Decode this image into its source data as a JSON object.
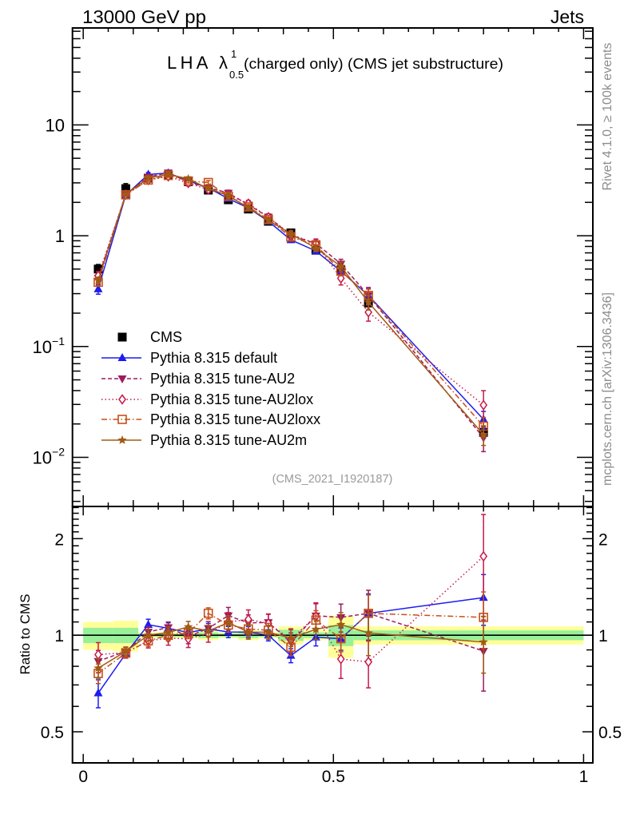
{
  "header": {
    "left": "13000 GeV pp",
    "right": "Jets"
  },
  "side_labels": {
    "rivet": "Rivet 4.1.0, ≥ 100k events",
    "mcplots": "mcplots.cern.ch [arXiv:1306.3436]"
  },
  "chart_data": {
    "type": "line",
    "title": {
      "prefix": "LHA λ",
      "sup": "1",
      "sub": "0.5",
      "suffix": "(charged only) (CMS jet substructure)"
    },
    "analysis_label": "(CMS_2021_I1920187)",
    "xlabel": "",
    "xlim": [
      -0.0215,
      1.0185
    ],
    "x_ticks": [
      {
        "value": 0,
        "label": "0"
      },
      {
        "value": 0.5,
        "label": "0.5"
      },
      {
        "value": 1,
        "label": "1"
      }
    ],
    "x_minor_step": 0.05,
    "bin_edges": [
      0,
      0.06,
      0.11,
      0.15,
      0.19,
      0.23,
      0.27,
      0.31,
      0.35,
      0.39,
      0.44,
      0.49,
      0.54,
      0.6,
      1.0
    ],
    "x": [
      0.03,
      0.085,
      0.13,
      0.17,
      0.21,
      0.25,
      0.29,
      0.33,
      0.37,
      0.415,
      0.465,
      0.515,
      0.57,
      0.8
    ],
    "main": {
      "yscale": "log",
      "ylabel": "",
      "ylim": [
        0.0036,
        75
      ],
      "grid": false,
      "legend_position": "lower-left",
      "y_ticks": [
        {
          "value": 10,
          "label": "10"
        },
        {
          "value": 1,
          "label": "1"
        },
        {
          "value": 0.1,
          "label": "10",
          "exp": "−1"
        },
        {
          "value": 0.01,
          "label": "10",
          "exp": "−2"
        }
      ],
      "data": {
        "name": "CMS",
        "legend": "CMS",
        "color": "#000000",
        "marker": "square-filled",
        "values": [
          0.5,
          2.66,
          3.31,
          3.5,
          3.07,
          2.58,
          2.11,
          1.74,
          1.35,
          1.06,
          0.74,
          0.49,
          0.247,
          0.0168
        ],
        "total_rel_err": [
          0.1,
          0.11,
          0.02,
          0.02,
          0.02,
          0.035,
          0.02,
          0.035,
          0.02,
          0.065,
          0.035,
          0.15,
          0.065,
          0.065
        ],
        "stat_rel_err": [
          0.055,
          0.055,
          0.012,
          0.012,
          0.012,
          0.02,
          0.012,
          0.02,
          0.012,
          0.04,
          0.02,
          0.075,
          0.035,
          0.035
        ]
      },
      "series": [
        {
          "name": "Pythia 8.315 default",
          "legend": "Pythia 8.315 default",
          "color": "#1c1cf0",
          "line_style": "solid",
          "marker": "triangle-up",
          "values": [
            0.33,
            2.33,
            3.57,
            3.68,
            3.13,
            2.7,
            2.16,
            1.78,
            1.35,
            0.916,
            0.729,
            0.478,
            0.289,
            0.022
          ],
          "rel_errors": [
            0.1,
            0.03,
            0.04,
            0.04,
            0.04,
            0.04,
            0.04,
            0.04,
            0.04,
            0.05,
            0.06,
            0.08,
            0.15,
            0.18
          ]
        },
        {
          "name": "Pythia 8.315 tune-AU2",
          "legend": "Pythia 8.315 tune-AU2",
          "color": "#9c1c5e",
          "line_style": "dashed",
          "marker": "triangle-down",
          "values": [
            0.415,
            2.37,
            3.39,
            3.7,
            3.04,
            2.71,
            2.43,
            1.9,
            1.48,
            1.007,
            0.851,
            0.557,
            0.289,
            0.015
          ],
          "rel_errors": [
            0.08,
            0.03,
            0.04,
            0.04,
            0.05,
            0.05,
            0.06,
            0.06,
            0.06,
            0.07,
            0.09,
            0.1,
            0.18,
            0.25
          ]
        },
        {
          "name": "Pythia 8.315 tune-AU2lox",
          "legend": "Pythia 8.315 tune-AU2lox",
          "color": "#c8184b",
          "line_style": "dotted",
          "marker": "diamond-open",
          "values": [
            0.435,
            2.35,
            3.18,
            3.43,
            2.99,
            2.61,
            2.32,
            1.95,
            1.47,
            1.028,
            0.849,
            0.413,
            0.204,
            0.0296
          ],
          "rel_errors": [
            0.09,
            0.04,
            0.05,
            0.05,
            0.06,
            0.06,
            0.07,
            0.07,
            0.07,
            0.08,
            0.1,
            0.13,
            0.17,
            0.35
          ]
        },
        {
          "name": "Pythia 8.315 tune-AU2loxx",
          "legend": "Pythia 8.315 tune-AU2loxx",
          "color": "#c4501a",
          "line_style": "dashdot",
          "marker": "square-open",
          "values": [
            0.38,
            2.34,
            3.18,
            3.5,
            3.12,
            3.02,
            2.27,
            1.82,
            1.4,
            0.973,
            0.825,
            0.478,
            0.289,
            0.0191
          ],
          "rel_errors": [
            0.07,
            0.03,
            0.04,
            0.04,
            0.04,
            0.04,
            0.05,
            0.05,
            0.05,
            0.06,
            0.07,
            0.09,
            0.14,
            0.2
          ]
        },
        {
          "name": "Pythia 8.315 tune-AU2m",
          "legend": "Pythia 8.315 tune-AU2m",
          "color": "#a05a14",
          "line_style": "solid",
          "marker": "star",
          "values": [
            0.395,
            2.37,
            3.31,
            3.57,
            3.26,
            2.66,
            2.31,
            1.78,
            1.38,
            1.039,
            0.772,
            0.529,
            0.251,
            0.016
          ],
          "rel_errors": [
            0.07,
            0.03,
            0.04,
            0.04,
            0.04,
            0.04,
            0.05,
            0.05,
            0.05,
            0.06,
            0.07,
            0.09,
            0.15,
            0.2
          ]
        }
      ]
    },
    "ratio": {
      "ylabel": "Ratio to CMS",
      "yscale": "log",
      "ylim": [
        0.4,
        2.52
      ],
      "reference": 1,
      "y_ticks": [
        {
          "value": 2,
          "label": "2"
        },
        {
          "value": 1,
          "label": "1"
        },
        {
          "value": 0.5,
          "label": "0.5"
        }
      ],
      "y_minor_step": 0.1,
      "band_colors": {
        "total": "#ffff99",
        "stat": "#98f098"
      }
    }
  }
}
